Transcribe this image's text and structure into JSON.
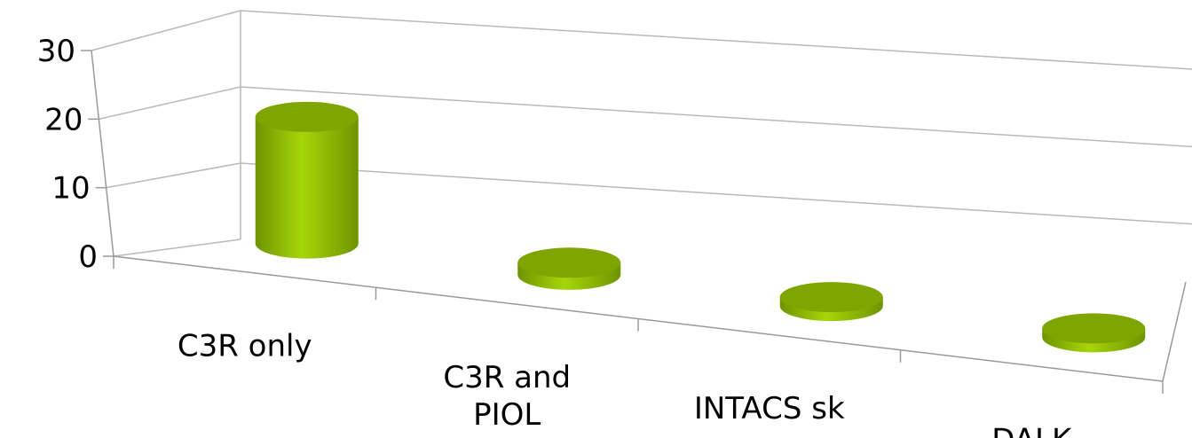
{
  "chart_data": {
    "type": "bar",
    "style": "3d-cylinder",
    "categories": [
      "C3R only",
      "C3R and PIOL",
      "INTACS sk",
      "DALK"
    ],
    "category_lines": [
      [
        "C3R only"
      ],
      [
        "C3R and",
        "PIOL"
      ],
      [
        "INTACS sk"
      ],
      [
        "DALK"
      ]
    ],
    "values": [
      21,
      2,
      1,
      1
    ],
    "ylim": [
      0,
      30
    ],
    "yticks": [
      "0",
      "10",
      "20",
      "30"
    ],
    "grid": true,
    "legend": "none"
  },
  "colors": {
    "bar_body_light": "#a6d60a",
    "bar_body_dark": "#6e9400",
    "bar_top": "#7fa500",
    "grid_line": "#b9b9b9",
    "axis_line": "#9a9a9a"
  }
}
